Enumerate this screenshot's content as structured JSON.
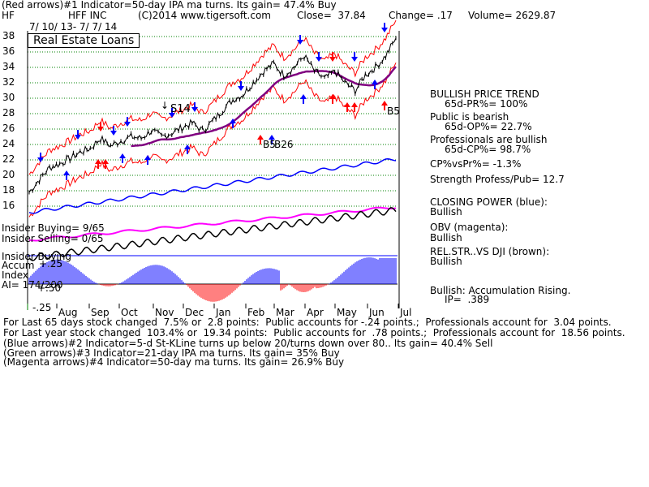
{
  "header": {
    "line1": "(Red arrows)#1 Indicator=50-day IPA ma turns. Its gain= 47.4% Buy",
    "symbol": "HF",
    "company": "HFF INC",
    "copyright": "(C)2014 www.tigersoft.com",
    "close": "Close=  37.84",
    "change": "Change= .17",
    "volume": "Volume= 2629.87",
    "date_range": "7/ 10/ 13- 7/ 7/ 14",
    "industry": "Real Estate Loans"
  },
  "annotations": {
    "s14": "S14",
    "s14_arrow": "↓",
    "b5_right": "B5",
    "b5_left": "B5",
    "b26": "B26"
  },
  "left_labels": {
    "insider_buying": "Insider Buying= 9/65",
    "insider_selling": "Insider Selling= 0/65",
    "insider_buying2": "Insider Buying",
    "accum": "Accum",
    "plus25": "+.25",
    "index": "Index",
    "plus50": "+.50",
    "ai": "AI= 174/200",
    "minus25": "-.25"
  },
  "right_panel": {
    "bullish_trend": "BULLISH PRICE TREND",
    "pr": "65d-PR%= 100%",
    "public_bearish": "Public is bearish",
    "op": "65d-OP%= 22.7%",
    "pros_bullish": "Professionals are bullish",
    "cp": "65d-CP%= 98.7%",
    "cpvspr": "CP%vsPr%= -1.3%",
    "strength": "Strength Profess/Pub= 12.7",
    "closing_power": "CLOSING POWER (blue):",
    "cp_state": "Bullish",
    "obv": "OBV (magenta):",
    "obv_state": "Bullish",
    "relstr": "REL.STR..VS DJI (brown):",
    "relstr_state": "Bullish",
    "accum_rising": "Bullish: Accumulation Rising.",
    "ip": "IP=  .389"
  },
  "footer": {
    "line1": "For Last 65 days stock changed  7.5% or  2.8 points:  Public accounts for -.24 points.;  Professionals account for  3.04 points.",
    "line2": "For Last year stock changed  103.4% or  19.34 points:  Public accounts for  .78 points.;  Professionals account for  18.56 points.",
    "line3": "(Blue arrows)#2 Indicator=5-d St-KLine turns up below 20/turns down over 80.. Its gain= 40.4% Sell",
    "line4": "(Green arrows)#3 Indicator=21-day IPA ma turns. Its gain= 35% Buy",
    "line5": "(Magenta arrows)#4 Indicator=50-day ma turns. Its gain= 26.9% Buy"
  },
  "colors": {
    "price": "#000000",
    "bands": "#ff0000",
    "ma": "#800080",
    "arrows_blue": "#0000ff",
    "arrows_red": "#ff0000",
    "closing_power": "#0000ff",
    "obv": "#ff00ff",
    "relstr": "#000000",
    "grid": "#008000",
    "accum_pos": "#0000ff",
    "accum_neg": "#ff0000"
  },
  "chart_data": {
    "type": "line",
    "yticks": [
      16,
      18,
      20,
      22,
      24,
      26,
      28,
      30,
      32,
      34,
      36,
      38
    ],
    "ylim": [
      15,
      39
    ],
    "xticks": [
      "Aug",
      "Sep",
      "Oct",
      "Nov",
      "Dec",
      "Jan",
      "Feb",
      "Mar",
      "Apr",
      "May",
      "Jun",
      "Jul"
    ],
    "series": [
      {
        "values": [
          17.8,
          19.5,
          21.0,
          21.5,
          22.2,
          23.0,
          23.5,
          24.8,
          23.8,
          24.5,
          25.0,
          24.8,
          25.8,
          25.0,
          25.5,
          26.2,
          26.8,
          25.8,
          27.0,
          28.5,
          29.8,
          30.5,
          32.0,
          33.5,
          34.5,
          33.0,
          34.0,
          35.5,
          33.5,
          32.5,
          33.5,
          32.0,
          31.0,
          33.0,
          34.0,
          35.5,
          37.8
        ]
      }
    ]
  }
}
